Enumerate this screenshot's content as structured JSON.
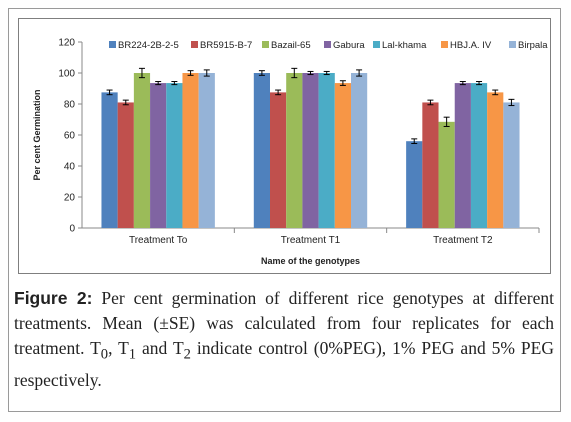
{
  "chart_data": {
    "type": "bar",
    "categories": [
      "Treatment To",
      "Treatment T1",
      "Treatment T2"
    ],
    "xlabel": "Name of the genotypes",
    "ylabel": "Per cent Germination",
    "ylim": [
      0,
      120
    ],
    "yticks": [
      "0",
      "20",
      "40",
      "60",
      "80",
      "100",
      "120"
    ],
    "legend_position": "top",
    "series": [
      {
        "name": "BR224-2B-2-5",
        "color": "#4f81bd",
        "values": [
          87.5,
          100,
          56
        ],
        "errors": [
          1.5,
          1.5,
          1.5
        ]
      },
      {
        "name": "BR5915-B-7",
        "color": "#c0504d",
        "values": [
          81,
          87.5,
          81
        ],
        "errors": [
          1.5,
          1.5,
          1.5
        ]
      },
      {
        "name": "Bazail-65",
        "color": "#9bbb59",
        "values": [
          100,
          100,
          68.5
        ],
        "errors": [
          3,
          3,
          3
        ]
      },
      {
        "name": "Gabura",
        "color": "#8064a2",
        "values": [
          93.5,
          100,
          93.5
        ],
        "errors": [
          1,
          1,
          1
        ]
      },
      {
        "name": "Lal-khama",
        "color": "#4bacc6",
        "values": [
          93.5,
          100,
          93.5
        ],
        "errors": [
          1,
          1,
          1
        ]
      },
      {
        "name": "HBJ.A. IV",
        "color": "#f79646",
        "values": [
          100,
          93.5,
          87.5
        ],
        "errors": [
          1.5,
          1.5,
          1.5
        ]
      },
      {
        "name": "Birpala",
        "color": "#95b3d7",
        "values": [
          100,
          100,
          81
        ],
        "errors": [
          2,
          2,
          2
        ]
      }
    ]
  },
  "caption": {
    "label": "Figure 2:",
    "text": "Per cent germination of different rice genotypes at different treatments. Mean (±SE) was calculated from four replicates for each treatment. T",
    "sub0": "0",
    "sep1": ", T",
    "sub1": "1",
    "sep2": " and T",
    "sub2": "2",
    "text_end": " indicate control (0%PEG), 1% PEG and 5% PEG respectively."
  }
}
